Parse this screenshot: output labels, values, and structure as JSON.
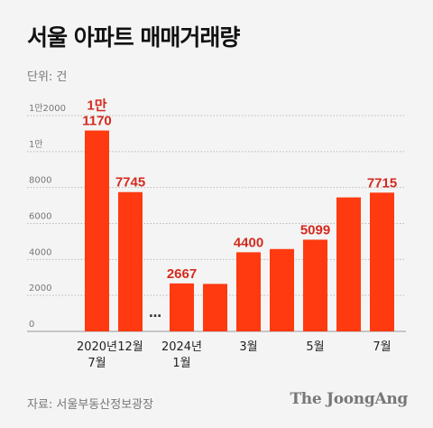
{
  "title": "서울 아파트 매매거래량",
  "unit_label": "단위: 건",
  "source": "자료: 서울부동산정보광장",
  "logo": "The JoongAng",
  "colors": {
    "bar": "#ff3a10",
    "value_label": "#d42a1e",
    "axis_text": "#777777",
    "grid": "#bbbbbb",
    "background": "#f4f4f4"
  },
  "chart_data": {
    "type": "bar",
    "title": "서울 아파트 매매거래량",
    "ylabel": "단위: 건",
    "ylim": [
      0,
      12000
    ],
    "yticks": [
      {
        "value": 0,
        "label": "0"
      },
      {
        "value": 2000,
        "label": "2000"
      },
      {
        "value": 4000,
        "label": "4000"
      },
      {
        "value": 6000,
        "label": "6000"
      },
      {
        "value": 8000,
        "label": "8000"
      },
      {
        "value": 10000,
        "label": "1만"
      },
      {
        "value": 12000,
        "label": "1만2000"
      }
    ],
    "gap_marker": "…",
    "bars": [
      {
        "value": 11170,
        "value_label": [
          "1만",
          "1170"
        ],
        "xlabel": [
          "2020년",
          "7월"
        ]
      },
      {
        "value": 7745,
        "value_label": [
          "7745"
        ],
        "xlabel": [
          "12월"
        ]
      },
      {
        "value": 2667,
        "value_label": [
          "2667"
        ],
        "xlabel": [
          "2024년",
          "1월"
        ]
      },
      {
        "value": 2640,
        "value_label": [],
        "xlabel": []
      },
      {
        "value": 4400,
        "value_label": [
          "4400"
        ],
        "xlabel": [
          "3월"
        ]
      },
      {
        "value": 4580,
        "value_label": [],
        "xlabel": []
      },
      {
        "value": 5099,
        "value_label": [
          "5099"
        ],
        "xlabel": [
          "5월"
        ]
      },
      {
        "value": 7450,
        "value_label": [],
        "xlabel": []
      },
      {
        "value": 7715,
        "value_label": [
          "7715"
        ],
        "xlabel": [
          "7월"
        ]
      }
    ]
  }
}
